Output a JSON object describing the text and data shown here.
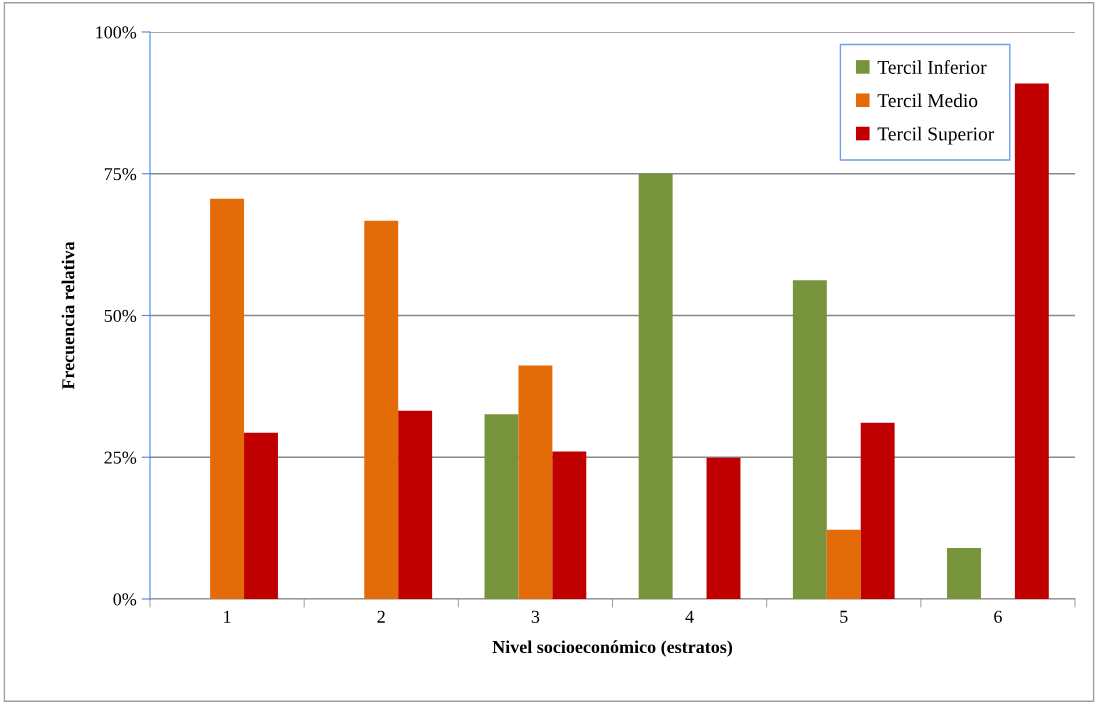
{
  "chart_data": {
    "type": "bar",
    "xlabel": "Nivel socioeconómico (estratos)",
    "ylabel": "Frecuencia relativa",
    "categories": [
      "1",
      "2",
      "3",
      "4",
      "5",
      "6"
    ],
    "series": [
      {
        "name": "Tercil Inferior",
        "color": "#77933c",
        "values": [
          0,
          0,
          32.6,
          75.0,
          56.2,
          9.0
        ]
      },
      {
        "name": "Tercil Medio",
        "color": "#e36c09",
        "values": [
          70.6,
          66.7,
          41.2,
          0,
          12.2,
          0
        ]
      },
      {
        "name": "Tercil Superior",
        "color": "#c00000",
        "values": [
          29.3,
          33.2,
          26.0,
          24.9,
          31.1,
          90.9
        ]
      }
    ],
    "ylim": [
      0,
      100
    ],
    "yticks": [
      {
        "value": 0,
        "label": "0%"
      },
      {
        "value": 25,
        "label": "25%"
      },
      {
        "value": 50,
        "label": "50%"
      },
      {
        "value": 75,
        "label": "75%"
      },
      {
        "value": 100,
        "label": "100%"
      }
    ],
    "grid": "y",
    "legend": "top right"
  }
}
